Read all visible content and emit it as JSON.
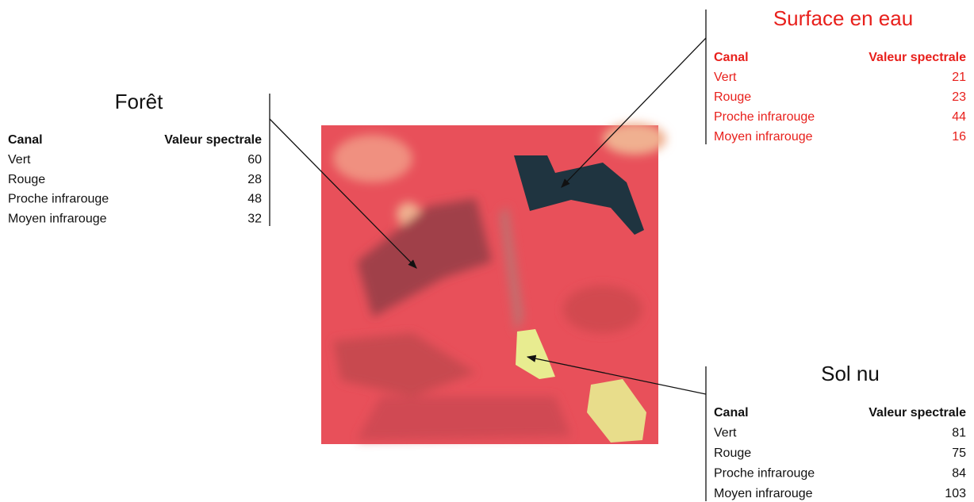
{
  "panels": [
    {
      "title": "Forêt",
      "headers": [
        "Canal",
        "Valeur spectrale"
      ],
      "rows": [
        [
          "Vert",
          60
        ],
        [
          "Rouge",
          28
        ],
        [
          "Proche infrarouge",
          48
        ],
        [
          "Moyen infrarouge",
          32
        ]
      ]
    },
    {
      "title": "Surface en eau",
      "headers": [
        "Canal",
        "Valeur spectrale"
      ],
      "rows": [
        [
          "Vert",
          21
        ],
        [
          "Rouge",
          23
        ],
        [
          "Proche infrarouge",
          44
        ],
        [
          "Moyen infrarouge",
          16
        ]
      ]
    },
    {
      "title": "Sol nu",
      "headers": [
        "Canal",
        "Valeur spectrale"
      ],
      "rows": [
        [
          "Vert",
          81
        ],
        [
          "Rouge",
          75
        ],
        [
          "Proche infrarouge",
          84
        ],
        [
          "Moyen infrarouge",
          103
        ]
      ]
    }
  ]
}
